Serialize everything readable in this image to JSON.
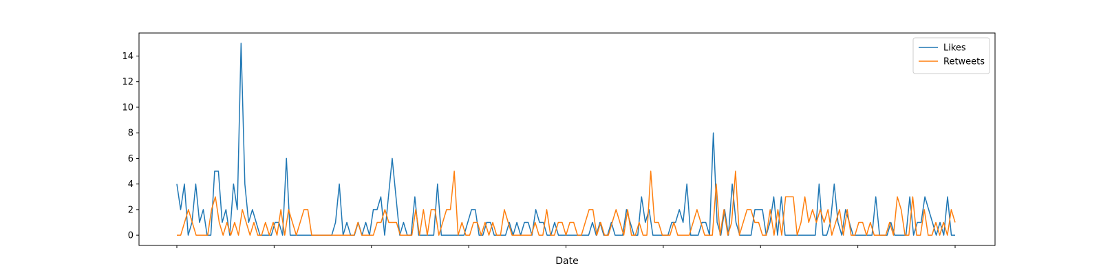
{
  "chart_data": {
    "type": "line",
    "title": "",
    "xlabel": "Date",
    "ylabel": "",
    "x_tick_labels": [],
    "ylim": [
      -0.8,
      15.8
    ],
    "yticks": [
      0,
      2,
      4,
      6,
      8,
      10,
      12,
      14
    ],
    "grid": false,
    "legend_position": "top-right",
    "series": [
      {
        "name": "Likes",
        "color": "#1f77b4",
        "values": [
          4,
          2,
          4,
          0,
          1,
          4,
          1,
          2,
          0,
          0,
          5,
          5,
          1,
          2,
          0,
          4,
          2,
          15,
          4,
          1,
          2,
          1,
          0,
          0,
          0,
          0,
          1,
          1,
          0,
          6,
          0,
          0,
          0,
          0,
          0,
          0,
          0,
          0,
          0,
          0,
          0,
          0,
          1,
          4,
          0,
          1,
          0,
          0,
          1,
          0,
          1,
          0,
          2,
          2,
          3,
          0,
          3,
          6,
          3,
          0,
          1,
          0,
          0,
          3,
          0,
          0,
          0,
          0,
          0,
          4,
          0,
          0,
          0,
          0,
          0,
          0,
          0,
          1,
          2,
          2,
          0,
          0,
          1,
          1,
          0,
          0,
          0,
          0,
          1,
          0,
          1,
          0,
          1,
          1,
          0,
          2,
          1,
          1,
          0,
          0,
          1,
          0,
          0,
          0,
          0,
          0,
          0,
          0,
          0,
          0,
          1,
          0,
          1,
          0,
          0,
          1,
          0,
          0,
          0,
          2,
          1,
          0,
          0,
          3,
          1,
          2,
          0,
          0,
          0,
          0,
          0,
          1,
          1,
          2,
          1,
          4,
          0,
          0,
          0,
          1,
          1,
          0,
          8,
          1,
          0,
          2,
          0,
          4,
          1,
          0,
          0,
          0,
          0,
          2,
          2,
          2,
          0,
          1,
          3,
          0,
          3,
          0,
          0,
          0,
          0,
          0,
          0,
          0,
          0,
          0,
          4,
          0,
          0,
          1,
          4,
          1,
          0,
          2,
          1,
          0,
          0,
          0,
          0,
          0,
          0,
          3,
          0,
          0,
          0,
          1,
          0,
          0,
          0,
          0,
          3,
          0,
          1,
          1,
          3,
          2,
          1,
          0,
          1,
          0,
          3,
          0,
          0
        ]
      },
      {
        "name": "Retweets",
        "color": "#ff7f0e",
        "values": [
          0,
          0,
          1,
          2,
          1,
          0,
          0,
          0,
          0,
          2,
          3,
          1,
          0,
          1,
          0,
          1,
          0,
          2,
          1,
          0,
          1,
          0,
          0,
          1,
          0,
          1,
          0,
          2,
          0,
          2,
          1,
          0,
          1,
          2,
          2,
          0,
          0,
          0,
          0,
          0,
          0,
          0,
          0,
          0,
          0,
          0,
          0,
          1,
          0,
          0,
          0,
          0,
          1,
          1,
          2,
          1,
          1,
          1,
          0,
          0,
          0,
          0,
          2,
          0,
          2,
          0,
          2,
          2,
          0,
          1,
          2,
          2,
          5,
          0,
          1,
          0,
          0,
          1,
          1,
          0,
          1,
          0,
          1,
          0,
          0,
          2,
          1,
          0,
          0,
          0,
          0,
          0,
          0,
          1,
          0,
          0,
          2,
          0,
          0,
          1,
          1,
          0,
          1,
          1,
          0,
          0,
          1,
          2,
          2,
          0,
          1,
          0,
          0,
          1,
          2,
          1,
          0,
          2,
          0,
          0,
          1,
          0,
          0,
          5,
          1,
          1,
          0,
          0,
          0,
          1,
          0,
          0,
          0,
          0,
          1,
          2,
          1,
          0,
          0,
          0,
          4,
          0,
          2,
          0,
          1,
          5,
          0,
          1,
          2,
          2,
          1,
          1,
          0,
          0,
          2,
          0,
          2,
          0,
          3,
          3,
          3,
          0,
          1,
          3,
          1,
          2,
          1,
          2,
          1,
          2,
          0,
          1,
          2,
          0,
          2,
          0,
          0,
          1,
          1,
          0,
          1,
          0,
          0,
          0,
          0,
          1,
          0,
          3,
          2,
          0,
          0,
          3,
          0,
          0,
          2,
          0,
          0,
          1,
          0,
          1,
          0,
          2,
          1
        ]
      }
    ]
  }
}
